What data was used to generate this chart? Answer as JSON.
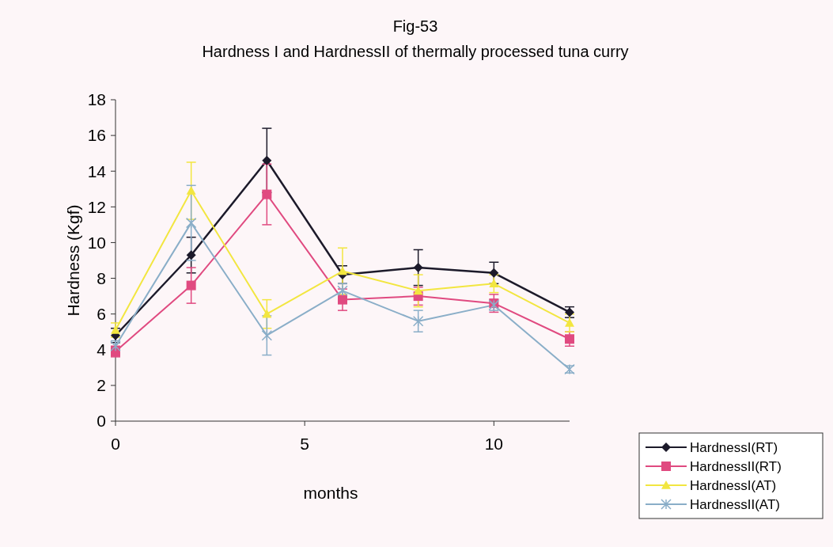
{
  "chart_data": {
    "type": "line",
    "title": "Fig-53",
    "subtitle": "Hardness I and HardnessII of thermally processed tuna curry",
    "xlabel": "months",
    "ylabel": "Hardness (Kgf)",
    "x": [
      0,
      2,
      4,
      6,
      8,
      10,
      12
    ],
    "xlim": [
      0,
      12
    ],
    "xticks": [
      0,
      5,
      10
    ],
    "ylim": [
      0,
      18
    ],
    "yticks": [
      0,
      2,
      4,
      6,
      8,
      10,
      12,
      14,
      16,
      18
    ],
    "grid": false,
    "legend": "bottom right",
    "series": [
      {
        "name": "HardnessI(RT)",
        "color": "#1c1a2a",
        "marker": "diamond",
        "values": [
          4.8,
          9.3,
          14.6,
          8.2,
          8.6,
          8.3,
          6.1
        ],
        "errors": [
          0.4,
          1.0,
          1.8,
          0.5,
          1.0,
          0.6,
          0.3
        ]
      },
      {
        "name": "HardnessII(RT)",
        "color": "#e04a80",
        "marker": "square",
        "values": [
          3.9,
          7.6,
          12.7,
          6.8,
          7.0,
          6.6,
          4.6
        ],
        "errors": [
          0.3,
          1.0,
          1.7,
          0.6,
          0.5,
          0.5,
          0.4
        ]
      },
      {
        "name": "HardnessI(AT)",
        "color": "#f2e640",
        "marker": "triangle",
        "values": [
          5.1,
          12.9,
          6.0,
          8.4,
          7.3,
          7.7,
          5.5
        ],
        "errors": [
          0.4,
          1.6,
          0.8,
          1.3,
          0.9,
          0.5,
          0.5
        ]
      },
      {
        "name": "HardnessII(AT)",
        "color": "#8aaec8",
        "marker": "cross",
        "values": [
          4.2,
          11.1,
          4.8,
          7.3,
          5.6,
          6.5,
          2.9
        ],
        "errors": [
          0.3,
          2.1,
          1.1,
          0.4,
          0.6,
          0.3,
          0.2
        ]
      }
    ]
  }
}
